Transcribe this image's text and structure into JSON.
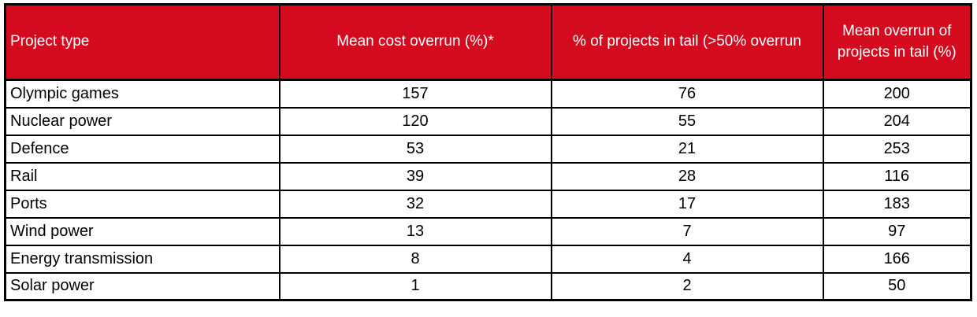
{
  "colors": {
    "header_bg": "#d40b1f",
    "header_text": "#ffffff",
    "border": "#000000",
    "cell_text": "#000000",
    "background": "#ffffff"
  },
  "chart_data": {
    "type": "table",
    "title": "",
    "columns": [
      "Project type",
      "Mean cost overrun (%)*",
      "% of projects in tail (>50% overrun",
      "Mean overrun of projects in tail (%)"
    ],
    "rows": [
      [
        "Olympic games",
        157,
        76,
        200
      ],
      [
        "Nuclear power",
        120,
        55,
        204
      ],
      [
        "Defence",
        53,
        21,
        253
      ],
      [
        "Rail",
        39,
        28,
        116
      ],
      [
        "Ports",
        32,
        17,
        183
      ],
      [
        "Wind power",
        13,
        7,
        97
      ],
      [
        "Energy transmission",
        8,
        4,
        166
      ],
      [
        "Solar power",
        1,
        2,
        50
      ]
    ]
  }
}
